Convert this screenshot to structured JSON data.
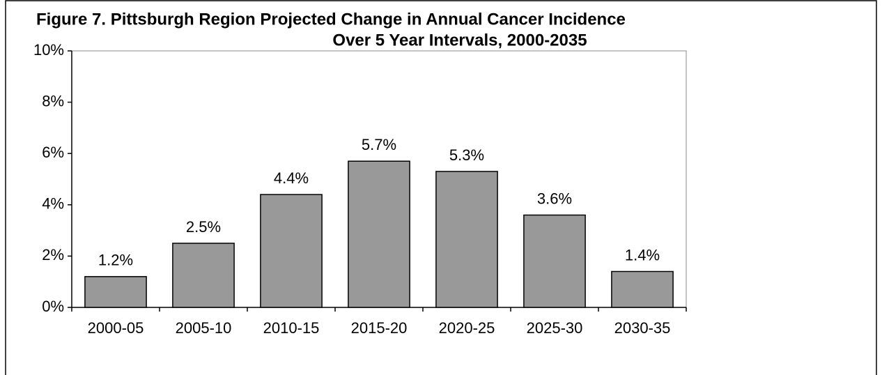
{
  "chart_data": {
    "type": "bar",
    "title": "Figure 7.  Pittsburgh Region Projected Change in Annual Cancer Incidence",
    "subtitle": "Over 5 Year Intervals, 2000-2035",
    "categories": [
      "2000-05",
      "2005-10",
      "2010-15",
      "2015-20",
      "2020-25",
      "2025-30",
      "2030-35"
    ],
    "values": [
      1.2,
      2.5,
      4.4,
      5.7,
      5.3,
      3.6,
      1.4
    ],
    "value_labels": [
      "1.2%",
      "2.5%",
      "4.4%",
      "5.7%",
      "5.3%",
      "3.6%",
      "1.4%"
    ],
    "color": "#999999",
    "ylim": [
      0,
      10
    ],
    "yticks": [
      {
        "value": 0,
        "label": "0%"
      },
      {
        "value": 2,
        "label": "2%"
      },
      {
        "value": 4,
        "label": "4%"
      },
      {
        "value": 6,
        "label": "6%"
      },
      {
        "value": 8,
        "label": "8%"
      },
      {
        "value": 10,
        "label": "10%"
      }
    ],
    "grid": false
  }
}
